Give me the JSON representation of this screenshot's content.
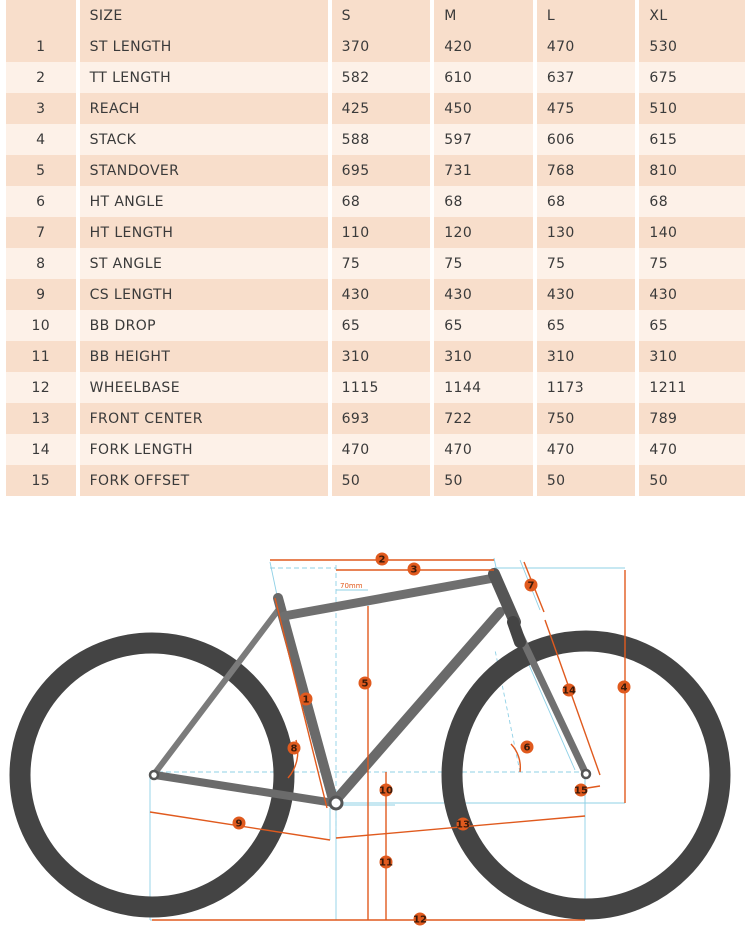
{
  "table": {
    "headers": [
      "",
      "SIZE",
      "S",
      "M",
      "L",
      "XL"
    ],
    "rows": [
      {
        "num": "1",
        "label": "ST LENGTH",
        "values": [
          "370",
          "420",
          "470",
          "530"
        ]
      },
      {
        "num": "2",
        "label": "TT LENGTH",
        "values": [
          "582",
          "610",
          "637",
          "675"
        ]
      },
      {
        "num": "3",
        "label": "REACH",
        "values": [
          "425",
          "450",
          "475",
          "510"
        ]
      },
      {
        "num": "4",
        "label": "STACK",
        "values": [
          "588",
          "597",
          "606",
          "615"
        ]
      },
      {
        "num": "5",
        "label": "STANDOVER",
        "values": [
          "695",
          "731",
          "768",
          "810"
        ]
      },
      {
        "num": "6",
        "label": "HT ANGLE",
        "values": [
          "68",
          "68",
          "68",
          "68"
        ]
      },
      {
        "num": "7",
        "label": "HT LENGTH",
        "values": [
          "110",
          "120",
          "130",
          "140"
        ]
      },
      {
        "num": "8",
        "label": "ST ANGLE",
        "values": [
          "75",
          "75",
          "75",
          "75"
        ]
      },
      {
        "num": "9",
        "label": "CS LENGTH",
        "values": [
          "430",
          "430",
          "430",
          "430"
        ]
      },
      {
        "num": "10",
        "label": "BB DROP",
        "values": [
          "65",
          "65",
          "65",
          "65"
        ]
      },
      {
        "num": "11",
        "label": "BB HEIGHT",
        "values": [
          "310",
          "310",
          "310",
          "310"
        ]
      },
      {
        "num": "12",
        "label": "WHEELBASE",
        "values": [
          "1115",
          "1144",
          "1173",
          "1211"
        ]
      },
      {
        "num": "13",
        "label": "FRONT CENTER",
        "values": [
          "693",
          "722",
          "750",
          "789"
        ]
      },
      {
        "num": "14",
        "label": "FORK LENGTH",
        "values": [
          "470",
          "470",
          "470",
          "470"
        ]
      },
      {
        "num": "15",
        "label": "FORK OFFSET",
        "values": [
          "50",
          "50",
          "50",
          "50"
        ]
      }
    ]
  },
  "diagram": {
    "annotation_70mm": "70mm",
    "markers": [
      "1",
      "2",
      "3",
      "4",
      "5",
      "6",
      "7",
      "8",
      "9",
      "10",
      "11",
      "12",
      "13",
      "14",
      "15"
    ],
    "colors": {
      "accent": "#e05a1e",
      "guide": "#8fd0e6",
      "frame": "#6f6f6f",
      "tire": "#444444"
    }
  }
}
